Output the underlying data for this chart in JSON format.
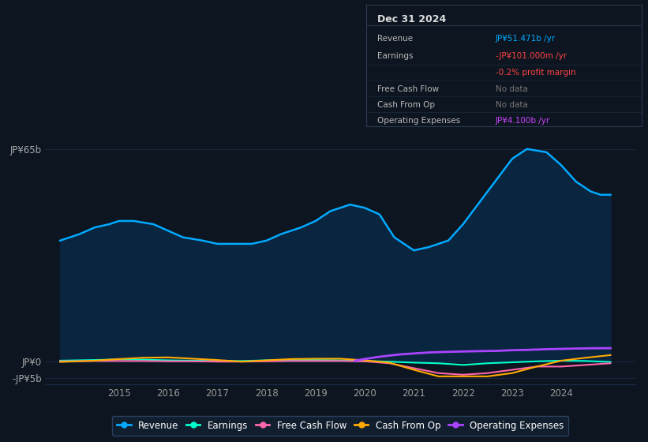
{
  "bg_color": "#0d1520",
  "plot_bg_color": "#0d1520",
  "grid_color": "#1e3050",
  "ylim": [
    -7,
    70
  ],
  "ytick_65_label": "JP¥65b",
  "ytick_0_label": "JP¥0",
  "ytick_neg5_label": "-JP¥5b",
  "ytick_65_val": 65,
  "ytick_0_val": 0,
  "ytick_neg5_val": -5,
  "xlim_start": 2013.5,
  "xlim_end": 2025.5,
  "xticks": [
    2015,
    2016,
    2017,
    2018,
    2019,
    2020,
    2021,
    2022,
    2023,
    2024
  ],
  "revenue_x": [
    2013.8,
    2014.2,
    2014.5,
    2014.8,
    2015.0,
    2015.3,
    2015.7,
    2016.0,
    2016.3,
    2016.7,
    2017.0,
    2017.3,
    2017.7,
    2018.0,
    2018.3,
    2018.7,
    2019.0,
    2019.3,
    2019.5,
    2019.7,
    2020.0,
    2020.3,
    2020.6,
    2021.0,
    2021.3,
    2021.7,
    2022.0,
    2022.3,
    2022.7,
    2023.0,
    2023.3,
    2023.7,
    2024.0,
    2024.3,
    2024.6,
    2024.8,
    2025.0
  ],
  "revenue_y": [
    37,
    39,
    41,
    42,
    43,
    43,
    42,
    40,
    38,
    37,
    36,
    36,
    36,
    37,
    39,
    41,
    43,
    46,
    47,
    48,
    47,
    45,
    38,
    34,
    35,
    37,
    42,
    48,
    56,
    62,
    65,
    64,
    60,
    55,
    52,
    51,
    51
  ],
  "earnings_x": [
    2013.8,
    2014.5,
    2015.0,
    2015.5,
    2016.0,
    2016.5,
    2017.0,
    2017.5,
    2018.0,
    2018.5,
    2019.0,
    2019.5,
    2020.0,
    2020.5,
    2021.0,
    2021.5,
    2022.0,
    2022.5,
    2023.0,
    2023.5,
    2024.0,
    2024.5,
    2025.0
  ],
  "earnings_y": [
    0.3,
    0.5,
    0.7,
    0.6,
    0.4,
    0.3,
    0.2,
    0.2,
    0.4,
    0.5,
    0.5,
    0.4,
    0.2,
    0.0,
    -0.3,
    -0.5,
    -1.0,
    -0.5,
    -0.2,
    0.1,
    0.3,
    0.2,
    -0.1
  ],
  "fcf_x": [
    2013.8,
    2014.5,
    2015.0,
    2015.5,
    2016.0,
    2016.5,
    2017.0,
    2017.5,
    2018.0,
    2018.5,
    2019.0,
    2019.5,
    2020.0,
    2020.5,
    2021.0,
    2021.5,
    2022.0,
    2022.5,
    2023.0,
    2023.5,
    2024.0,
    2024.5,
    2025.0
  ],
  "fcf_y": [
    0.1,
    0.2,
    0.2,
    0.2,
    0.1,
    0.1,
    0.0,
    0.0,
    0.1,
    0.2,
    0.2,
    0.2,
    0.1,
    -0.5,
    -2.0,
    -3.5,
    -4.0,
    -3.5,
    -2.5,
    -1.5,
    -1.5,
    -1.0,
    -0.5
  ],
  "cashop_x": [
    2013.8,
    2014.5,
    2015.0,
    2015.5,
    2016.0,
    2016.5,
    2017.0,
    2017.5,
    2018.0,
    2018.5,
    2019.0,
    2019.5,
    2020.0,
    2020.5,
    2021.0,
    2021.5,
    2022.0,
    2022.5,
    2023.0,
    2023.5,
    2024.0,
    2024.5,
    2025.0
  ],
  "cashop_y": [
    -0.1,
    0.3,
    0.8,
    1.2,
    1.3,
    0.9,
    0.5,
    0.0,
    0.4,
    0.8,
    0.9,
    0.9,
    0.4,
    -0.3,
    -2.5,
    -4.5,
    -4.5,
    -4.5,
    -3.5,
    -1.5,
    0.3,
    1.2,
    2.0
  ],
  "opexp_x": [
    2019.8,
    2020.0,
    2020.3,
    2020.7,
    2021.0,
    2021.3,
    2021.7,
    2022.0,
    2022.3,
    2022.7,
    2023.0,
    2023.3,
    2023.7,
    2024.0,
    2024.3,
    2024.7,
    2025.0
  ],
  "opexp_y": [
    0.3,
    0.8,
    1.5,
    2.2,
    2.5,
    2.8,
    3.0,
    3.1,
    3.2,
    3.3,
    3.5,
    3.6,
    3.8,
    3.9,
    4.0,
    4.1,
    4.1
  ],
  "revenue_color": "#00aaff",
  "revenue_fill_color": "#0a2540",
  "earnings_color": "#00ffcc",
  "fcf_color": "#ff66aa",
  "cashop_color": "#ffaa00",
  "opexp_color": "#aa44ff",
  "legend_bg": "#111e2e",
  "legend_border": "#2a4060",
  "info_box_bg": "#0d1520",
  "info_box_border": "#2a3a50",
  "info_date": "Dec 31 2024",
  "info_labels": [
    "Revenue",
    "Earnings",
    "",
    "Free Cash Flow",
    "Cash From Op",
    "Operating Expenses"
  ],
  "info_values": [
    "JP¥51.471b /yr",
    "-JP¥101.000m /yr",
    "-0.2% profit margin",
    "No data",
    "No data",
    "JP¥4.100b /yr"
  ],
  "info_val_colors": [
    "#00aaff",
    "#ff4444",
    "#ff4444",
    "#777777",
    "#777777",
    "#cc44ff"
  ],
  "legend_labels": [
    "Revenue",
    "Earnings",
    "Free Cash Flow",
    "Cash From Op",
    "Operating Expenses"
  ],
  "legend_colors": [
    "#00aaff",
    "#00ffcc",
    "#ff66aa",
    "#ffaa00",
    "#aa44ff"
  ]
}
